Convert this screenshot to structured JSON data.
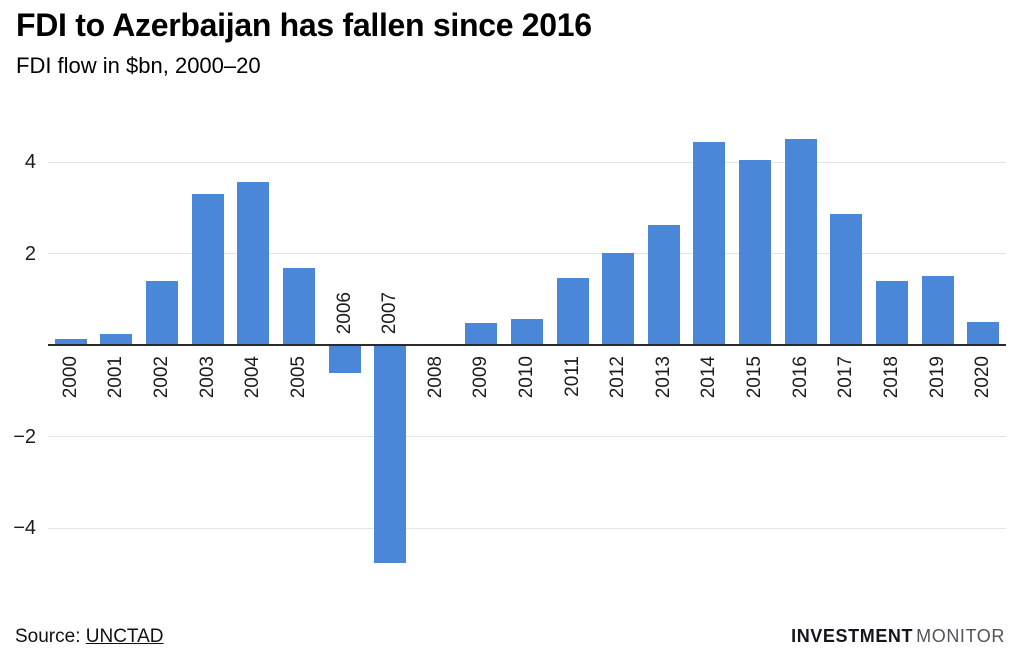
{
  "header": {
    "title": "FDI to Azerbaijan has fallen since 2016",
    "subtitle": "FDI flow in $bn, 2000–20"
  },
  "chart_data": {
    "type": "bar",
    "title": "FDI to Azerbaijan has fallen since 2016",
    "subtitle": "FDI flow in $bn, 2000–20",
    "unit": "$bn",
    "categories": [
      "2000",
      "2001",
      "2002",
      "2003",
      "2004",
      "2005",
      "2006",
      "2007",
      "2008",
      "2009",
      "2010",
      "2011",
      "2012",
      "2013",
      "2014",
      "2015",
      "2016",
      "2017",
      "2018",
      "2019",
      "2020"
    ],
    "values": [
      0.13,
      0.23,
      1.39,
      3.29,
      3.56,
      1.68,
      -0.58,
      -4.75,
      0.01,
      0.47,
      0.56,
      1.47,
      2.01,
      2.63,
      4.43,
      4.05,
      4.5,
      2.87,
      1.4,
      1.5,
      0.51
    ],
    "yticks": [
      4,
      2,
      -2,
      -4
    ],
    "ylim": [
      -5.2,
      4.7
    ],
    "grid": "horizontal",
    "legend": "none",
    "bar_color": "#4a87d8",
    "axis_color": "#2b2b2b",
    "gridline_color": "#e5e5e5"
  },
  "footer": {
    "source_label": "Source: ",
    "source_link": "UNCTAD",
    "brand_bold": "INVESTMENT",
    "brand_light": "MONITOR"
  }
}
